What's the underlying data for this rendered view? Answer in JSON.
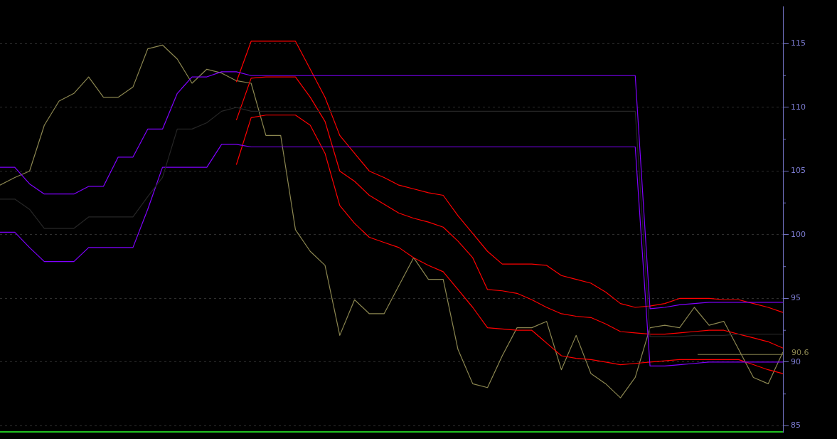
{
  "chart_data": {
    "type": "line",
    "categories": [
      null,
      null,
      null,
      null,
      null,
      null,
      null,
      null,
      null,
      null,
      null,
      null,
      null,
      null,
      null,
      null,
      null,
      null,
      null,
      null,
      null,
      null,
      null,
      null,
      null,
      null,
      null,
      null,
      null,
      null,
      null,
      null,
      null,
      null,
      null,
      null,
      null,
      null,
      null,
      null,
      null,
      null,
      null,
      null,
      null,
      null,
      null,
      null,
      null,
      null,
      null,
      null,
      null,
      null
    ],
    "series": [
      {
        "color": "#262626",
        "values": [
          102.8,
          102.8,
          102.0,
          100.5,
          100.5,
          100.5,
          101.4,
          101.4,
          101.4,
          101.4,
          103.0,
          104.5,
          108.3,
          108.3,
          108.8,
          109.7,
          110.0,
          109.7,
          109.7,
          109.7,
          109.7,
          109.7,
          109.7,
          109.7,
          109.7,
          109.7,
          109.7,
          109.7,
          109.7,
          109.7,
          109.7,
          109.7,
          109.7,
          109.7,
          109.7,
          109.7,
          109.7,
          109.7,
          109.7,
          109.7,
          109.7,
          109.7,
          109.7,
          109.7,
          92.0,
          92.0,
          92.0,
          92.1,
          92.1,
          92.1,
          92.2,
          92.2,
          92.2,
          92.2
        ]
      },
      {
        "color": "#8000ff",
        "values": [
          105.3,
          105.3,
          104.0,
          103.2,
          103.2,
          103.2,
          103.8,
          103.8,
          106.1,
          106.1,
          108.3,
          108.3,
          111.1,
          112.4,
          112.4,
          112.8,
          112.8,
          112.5,
          112.5,
          112.5,
          112.5,
          112.5,
          112.5,
          112.5,
          112.5,
          112.5,
          112.5,
          112.5,
          112.5,
          112.5,
          112.5,
          112.5,
          112.5,
          112.5,
          112.5,
          112.5,
          112.5,
          112.5,
          112.5,
          112.5,
          112.5,
          112.5,
          112.5,
          112.5,
          94.2,
          94.3,
          94.5,
          94.6,
          94.7,
          94.7,
          94.7,
          94.7,
          94.7,
          94.7
        ]
      },
      {
        "color": "#8000ff",
        "values": [
          100.2,
          100.2,
          99.0,
          97.9,
          97.9,
          97.9,
          99.0,
          99.0,
          99.0,
          99.0,
          102.0,
          105.3,
          105.3,
          105.3,
          105.3,
          107.1,
          107.1,
          106.9,
          106.9,
          106.9,
          106.9,
          106.9,
          106.9,
          106.9,
          106.9,
          106.9,
          106.9,
          106.9,
          106.9,
          106.9,
          106.9,
          106.9,
          106.9,
          106.9,
          106.9,
          106.9,
          106.9,
          106.9,
          106.9,
          106.9,
          106.9,
          106.9,
          106.9,
          106.9,
          89.7,
          89.7,
          89.8,
          89.9,
          90.0,
          90.0,
          90.0,
          90.0,
          90.0,
          90.0
        ]
      },
      {
        "color": "#ff0000",
        "values": [
          null,
          null,
          null,
          null,
          null,
          null,
          null,
          null,
          null,
          null,
          null,
          null,
          null,
          null,
          null,
          null,
          112.0,
          115.2,
          115.2,
          115.2,
          115.2,
          113.0,
          110.8,
          107.8,
          106.4,
          105.0,
          104.5,
          103.9,
          103.6,
          103.3,
          103.1,
          101.5,
          100.1,
          98.7,
          97.7,
          97.7,
          97.7,
          97.6,
          96.8,
          96.5,
          96.2,
          95.5,
          94.6,
          94.3,
          94.4,
          94.6,
          95.0,
          95.0,
          95.0,
          94.9,
          94.9,
          94.6,
          94.3,
          93.9
        ]
      },
      {
        "color": "#ff0000",
        "values": [
          null,
          null,
          null,
          null,
          null,
          null,
          null,
          null,
          null,
          null,
          null,
          null,
          null,
          null,
          null,
          null,
          109.0,
          112.3,
          112.4,
          112.4,
          112.4,
          110.8,
          108.9,
          105.0,
          104.2,
          103.1,
          102.4,
          101.7,
          101.3,
          101.0,
          100.6,
          99.5,
          98.2,
          95.7,
          95.6,
          95.4,
          94.9,
          94.3,
          93.8,
          93.6,
          93.5,
          93.0,
          92.4,
          92.3,
          92.2,
          92.2,
          92.3,
          92.4,
          92.5,
          92.5,
          92.2,
          91.9,
          91.6,
          91.1
        ]
      },
      {
        "color": "#ff0000",
        "values": [
          null,
          null,
          null,
          null,
          null,
          null,
          null,
          null,
          null,
          null,
          null,
          null,
          null,
          null,
          null,
          null,
          105.5,
          109.2,
          109.4,
          109.4,
          109.4,
          108.6,
          106.4,
          102.3,
          100.9,
          99.8,
          99.4,
          99.0,
          98.2,
          97.6,
          97.1,
          95.7,
          94.3,
          92.7,
          92.6,
          92.5,
          92.5,
          91.5,
          90.5,
          90.3,
          90.2,
          90.0,
          89.8,
          89.9,
          90.0,
          90.1,
          90.2,
          90.2,
          90.2,
          90.2,
          90.2,
          89.8,
          89.4,
          89.1
        ]
      },
      {
        "color": "#8b8650",
        "values": [
          103.9,
          104.5,
          105.0,
          108.6,
          110.5,
          111.1,
          112.4,
          110.8,
          110.8,
          111.6,
          114.6,
          114.9,
          113.8,
          111.9,
          113.0,
          112.7,
          112.1,
          111.9,
          107.8,
          107.8,
          100.4,
          98.7,
          97.6,
          92.1,
          94.9,
          93.8,
          93.8,
          96.0,
          98.2,
          96.5,
          96.5,
          91.0,
          88.3,
          88.0,
          90.5,
          92.7,
          92.7,
          93.2,
          89.4,
          92.1,
          89.1,
          88.3,
          87.2,
          88.8,
          92.7,
          92.9,
          92.7,
          94.3,
          92.9,
          93.2,
          91.0,
          88.8,
          88.3,
          90.8
        ]
      }
    ],
    "ylim": [
      84.5,
      117.9
    ],
    "yticks": [
      85,
      90,
      95,
      100,
      105,
      110,
      115
    ],
    "ref_lines": [
      {
        "axis": "y",
        "value": 90.6,
        "label": "90.6",
        "color": "#8b8650"
      }
    ],
    "grid": "y",
    "legend": false,
    "marker": "none",
    "tick_labels": "y"
  }
}
